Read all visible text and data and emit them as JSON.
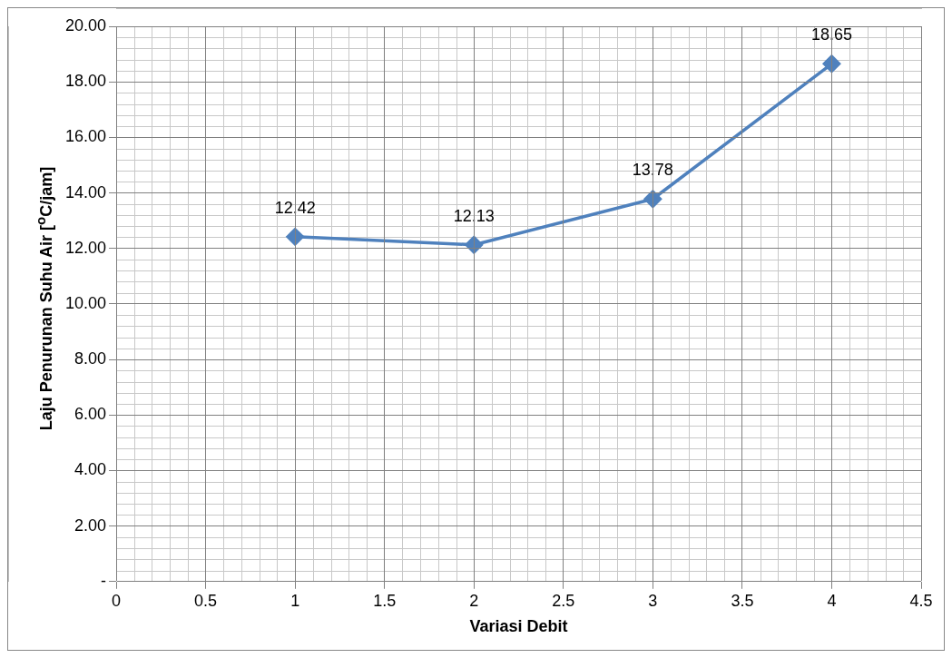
{
  "chart_data": {
    "type": "line",
    "xlabel": "Variasi Debit",
    "ylabel": "Laju Penurunan Suhu Air [$^{o}$C/jam]",
    "x": [
      1,
      2,
      3,
      4
    ],
    "series": [
      {
        "color": "#4f81bd",
        "values": [
          12.42,
          12.13,
          13.78,
          18.65
        ]
      }
    ],
    "xlim": [
      0,
      4.5
    ],
    "xticks": [
      0,
      0.5,
      1,
      1.5,
      2,
      2.5,
      3,
      3.5,
      4,
      4.5
    ],
    "ylim": [
      0,
      20
    ],
    "yticks": [
      {
        "value": 0,
        "label": "-"
      },
      {
        "value": 2,
        "label": "2.00"
      },
      {
        "value": 4,
        "label": "4.00"
      },
      {
        "value": 6,
        "label": "6.00"
      },
      {
        "value": 8,
        "label": "8.00"
      },
      {
        "value": 10,
        "label": "10.00"
      },
      {
        "value": 12,
        "label": "12.00"
      },
      {
        "value": 14,
        "label": "14.00"
      },
      {
        "value": 16,
        "label": "16.00"
      },
      {
        "value": 18,
        "label": "18.00"
      },
      {
        "value": 20,
        "label": "20.00"
      }
    ],
    "grid": true,
    "legend": false,
    "marker": "diamond",
    "line_style": "solid",
    "data_labels": true
  }
}
